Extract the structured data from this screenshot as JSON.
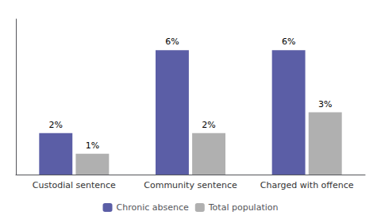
{
  "chart_data": {
    "type": "bar",
    "categories": [
      "Custodial sentence",
      "Community sentence",
      "Charged with offence"
    ],
    "series": [
      {
        "name": "Chronic absence",
        "color": "#5b5ea6",
        "values": [
          2,
          6,
          6
        ],
        "value_labels": [
          "2%",
          "6%",
          "6%"
        ]
      },
      {
        "name": "Total population",
        "color": "#b0b0b0",
        "values": [
          1,
          2,
          3
        ],
        "value_labels": [
          "1%",
          "2%",
          "3%"
        ]
      }
    ],
    "ylim": [
      0,
      7.5
    ],
    "grid": false,
    "legend": "bottom",
    "data_labels": true,
    "tick_labels": "x"
  }
}
